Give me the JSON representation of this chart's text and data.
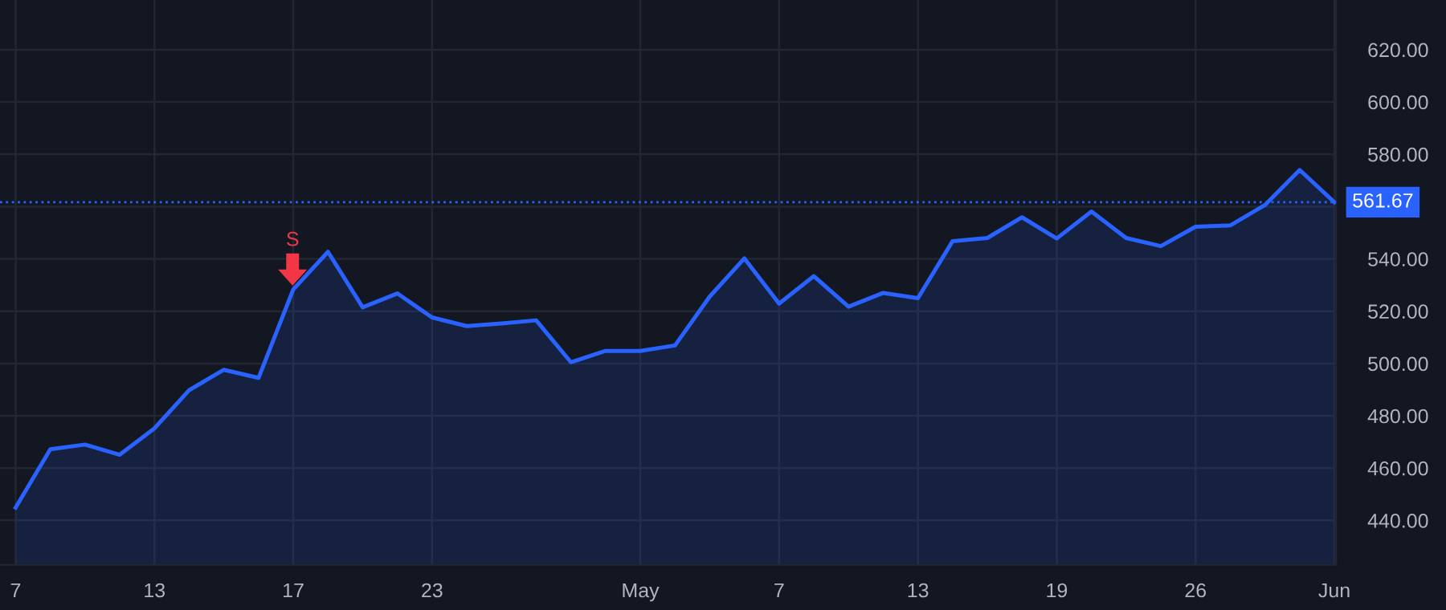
{
  "chart_data": {
    "type": "area",
    "categories": [
      "7",
      null,
      null,
      null,
      "13",
      null,
      null,
      null,
      "17",
      null,
      null,
      null,
      "23",
      null,
      null,
      null,
      null,
      null,
      "May",
      null,
      null,
      null,
      "7",
      null,
      null,
      null,
      "13",
      null,
      null,
      null,
      "19",
      null,
      null,
      null,
      "26",
      null,
      null,
      null,
      "Jun"
    ],
    "series": [
      {
        "color": "#2962ff",
        "values": [
          444.9,
          467.2,
          469,
          465.1,
          475.2,
          489.8,
          497.6,
          494.5,
          528.3,
          542.7,
          521.5,
          526.8,
          517.6,
          514.3,
          515.3,
          516.5,
          500.5,
          504.8,
          504.8,
          506.9,
          525.6,
          540.2,
          522.9,
          533.4,
          521.7,
          527,
          525,
          546.8,
          548,
          555.9,
          547.8,
          558.1,
          548,
          544.9,
          552.3,
          552.8,
          560.6,
          574,
          561.7
        ]
      }
    ],
    "ylim": [
      423,
      639
    ],
    "yticks": [
      {
        "value": 440,
        "label": "440.00"
      },
      {
        "value": 460,
        "label": "460.00"
      },
      {
        "value": 480,
        "label": "480.00"
      },
      {
        "value": 500,
        "label": "500.00"
      },
      {
        "value": 520,
        "label": "520.00"
      },
      {
        "value": 540,
        "label": "540.00"
      },
      {
        "value": 560,
        "label": null
      },
      {
        "value": 580,
        "label": "580.00"
      },
      {
        "value": 600,
        "label": "600.00"
      },
      {
        "value": 620,
        "label": "620.00"
      }
    ],
    "ref_lines": [
      {
        "axis": "y",
        "value": 561.67,
        "label": "561.67",
        "color": "#2962ff",
        "line_style": "dotted"
      }
    ],
    "annotations": [
      "S"
    ],
    "grid": true,
    "marker": "none",
    "line_style": "solid"
  }
}
